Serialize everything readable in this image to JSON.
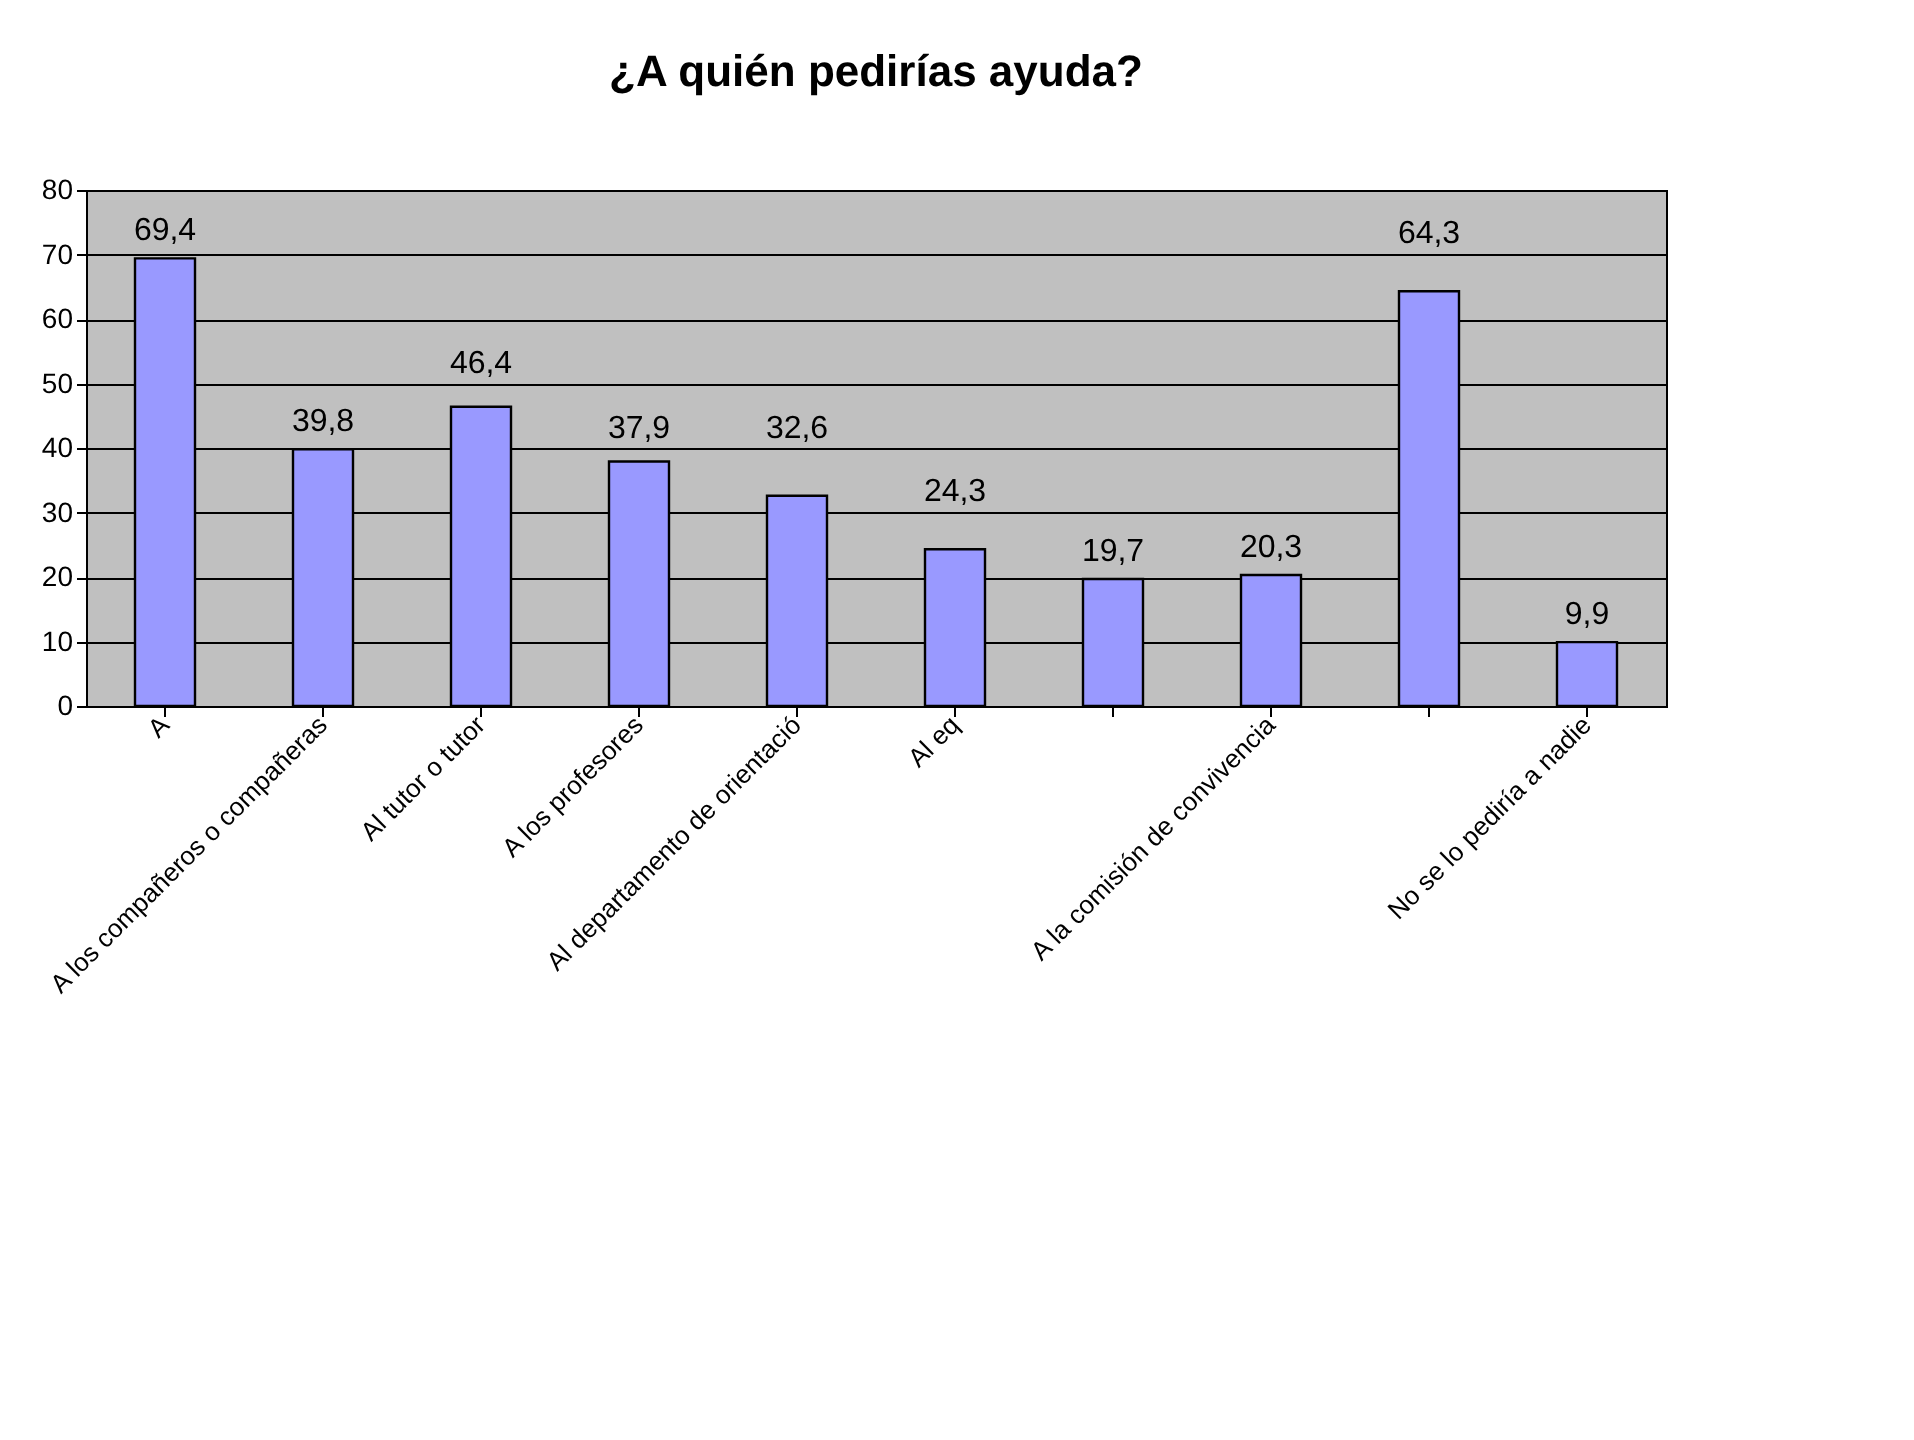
{
  "chart_data": {
    "type": "bar",
    "title": "¿A quién pedirías ayuda?",
    "categories": [
      "A",
      "A los compañeros o compañeras",
      "Al tutor o tutor",
      "A los profesores",
      "Al departamento de orientació",
      "Al eq",
      null,
      "A la comisión de convivencia",
      null,
      "No se lo pediría a nadie"
    ],
    "values": [
      69.4,
      39.8,
      46.4,
      37.9,
      32.6,
      24.3,
      19.7,
      20.3,
      64.3,
      9.9
    ],
    "value_labels": [
      "69,4",
      "39,8",
      "46,4",
      "37,9",
      "32,6",
      "24,3",
      "19,7",
      "20,3",
      "64,3",
      "9,9"
    ],
    "color": "#9999ff",
    "ylim": [
      0,
      80
    ],
    "yticks": [
      0,
      10,
      20,
      30,
      40,
      50,
      60,
      70,
      80
    ],
    "grid": "y"
  }
}
